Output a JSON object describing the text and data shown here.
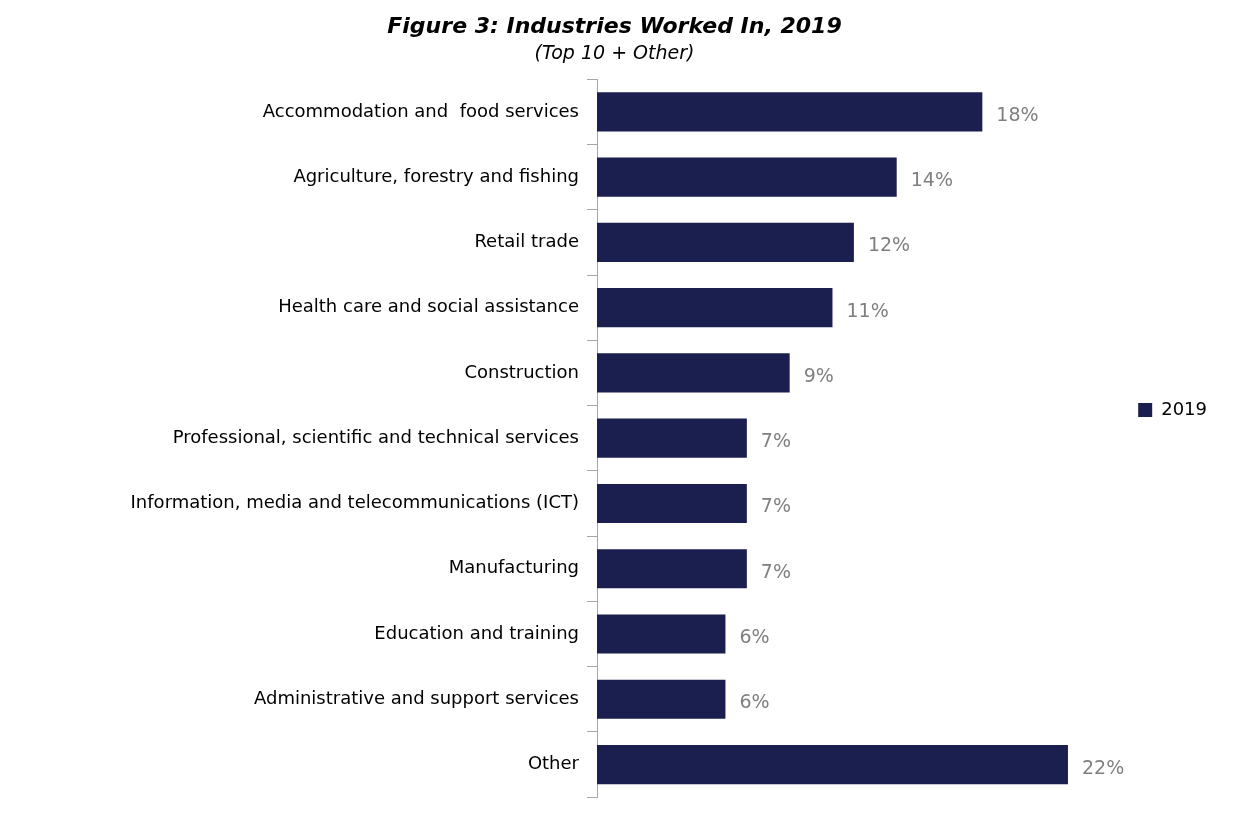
{
  "chart_data": {
    "type": "bar",
    "orientation": "horizontal",
    "title": "Figure 3: Industries Worked In, 2019",
    "subtitle": "(Top 10 + Other)",
    "categories": [
      "Accommodation and  food services",
      "Agriculture, forestry and fishing",
      "Retail trade",
      "Health care and social assistance",
      "Construction",
      "Professional, scientific and technical services",
      "Information, media and telecommunications (ICT)",
      "Manufacturing",
      "Education and training",
      "Administrative and support services",
      "Other"
    ],
    "series": [
      {
        "name": "2019",
        "color": "#1b1f4f",
        "values": [
          18,
          14,
          12,
          11,
          9,
          7,
          7,
          7,
          6,
          6,
          22
        ],
        "value_labels": [
          "18%",
          "14%",
          "12%",
          "11%",
          "9%",
          "7%",
          "7%",
          "7%",
          "6%",
          "6%",
          "22%"
        ]
      }
    ],
    "legend": "right",
    "grid": false
  }
}
